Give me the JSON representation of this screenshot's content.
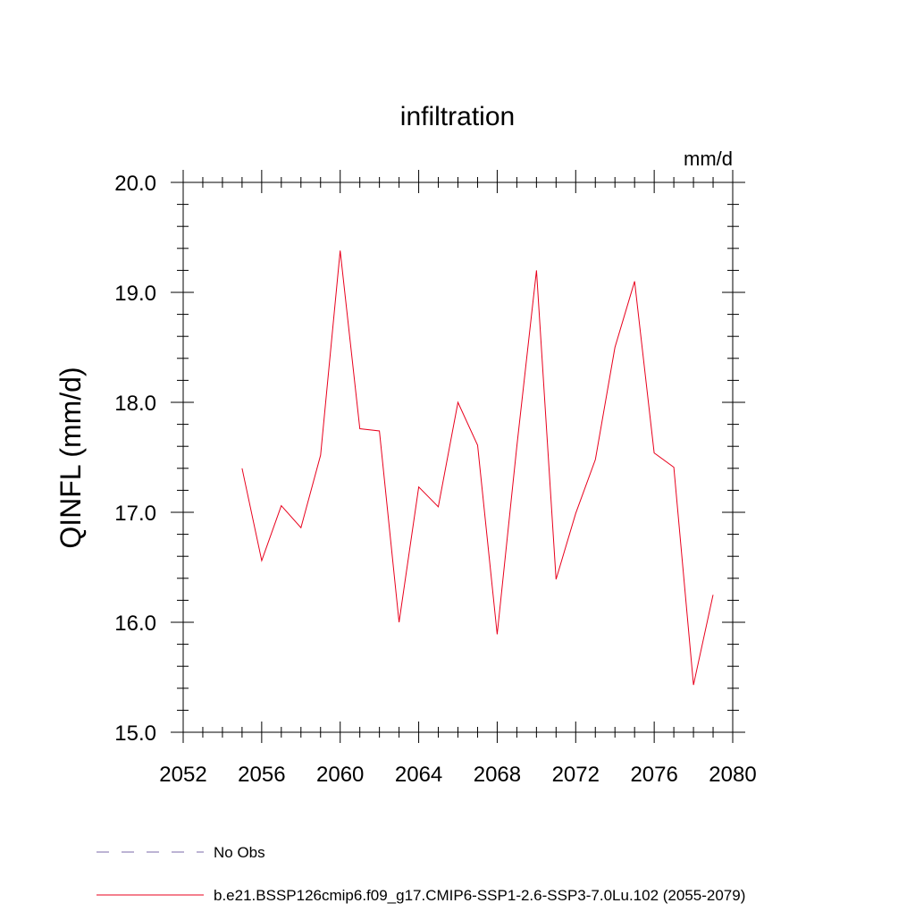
{
  "chart_data": {
    "type": "line",
    "title": "infiltration",
    "units_label": "mm/d",
    "xlabel": "",
    "ylabel": "QINFL  (mm/d)",
    "xlim": [
      2052,
      2080
    ],
    "ylim": [
      15.0,
      20.0
    ],
    "x_ticks": [
      2052,
      2056,
      2060,
      2064,
      2068,
      2072,
      2076,
      2080
    ],
    "x_tick_labels": [
      "2052",
      "2056",
      "2060",
      "2064",
      "2068",
      "2072",
      "2076",
      "2080"
    ],
    "y_ticks": [
      15.0,
      16.0,
      17.0,
      18.0,
      19.0,
      20.0
    ],
    "y_tick_labels": [
      "15.0",
      "16.0",
      "17.0",
      "18.0",
      "19.0",
      "20.0"
    ],
    "grid": false,
    "legend_position": "bottom",
    "series": [
      {
        "name": "b.e21.BSSP126cmip6.f09_g17.CMIP6-SSP1-2.6-SSP3-7.0Lu.102 (2055-2079)",
        "color": "#e8001c",
        "style": "solid",
        "x": [
          2055,
          2056,
          2057,
          2058,
          2059,
          2060,
          2061,
          2062,
          2063,
          2064,
          2065,
          2066,
          2067,
          2068,
          2069,
          2070,
          2071,
          2072,
          2073,
          2074,
          2075,
          2076,
          2077,
          2078,
          2079
        ],
        "y": [
          17.4,
          16.56,
          17.06,
          16.86,
          17.52,
          19.38,
          17.76,
          17.74,
          16.0,
          17.23,
          17.05,
          18.0,
          17.61,
          15.89,
          17.6,
          19.2,
          16.39,
          16.99,
          17.48,
          18.5,
          19.1,
          17.54,
          17.41,
          15.43,
          16.25
        ]
      }
    ],
    "legend": [
      {
        "label": "No Obs",
        "color": "#7b6aa8",
        "style": "dashed"
      },
      {
        "label": "b.e21.BSSP126cmip6.f09_g17.CMIP6-SSP1-2.6-SSP3-7.0Lu.102 (2055-2079)",
        "color": "#e8001c",
        "style": "solid"
      }
    ]
  }
}
